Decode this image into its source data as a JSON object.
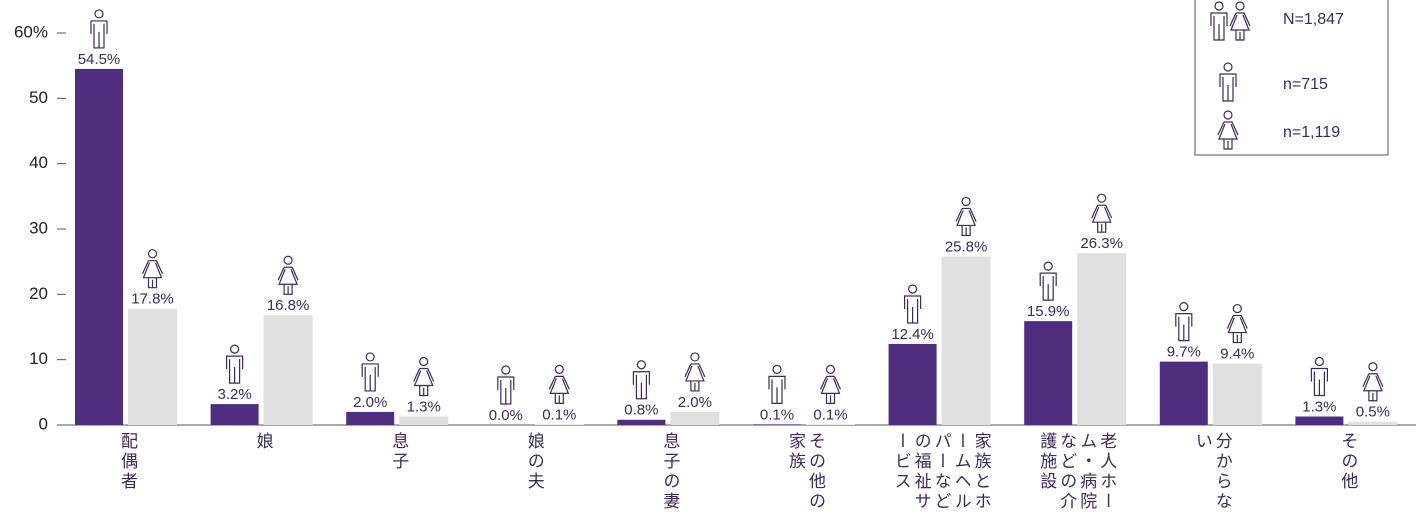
{
  "chart_data": {
    "type": "bar",
    "categories": [
      "配偶者",
      "娘",
      "息子",
      "娘の夫",
      "息子の妻",
      "その他の家族",
      "家族とホームヘルパーなどの福祉サービス",
      "老人ホーム・病院などの介護施設",
      "分からない",
      "その他"
    ],
    "series": [
      {
        "name": "n=715",
        "color": "#4f2d7f",
        "values": [
          54.5,
          3.2,
          2.0,
          0.0,
          0.8,
          0.1,
          12.4,
          15.9,
          9.7,
          1.3
        ],
        "value_labels": [
          "54.5%",
          "3.2%",
          "2.0%",
          "0.0%",
          "0.8%",
          "0.1%",
          "12.4%",
          "15.9%",
          "9.7%",
          "1.3%"
        ]
      },
      {
        "name": "n=1,119",
        "color": "#e0e0e0",
        "values": [
          17.8,
          16.8,
          1.3,
          0.1,
          2.0,
          0.1,
          25.8,
          26.3,
          9.4,
          0.5
        ],
        "value_labels": [
          "17.8%",
          "16.8%",
          "1.3%",
          "0.1%",
          "2.0%",
          "0.1%",
          "25.8%",
          "26.3%",
          "9.4%",
          "0.5%"
        ]
      }
    ],
    "legend_total": "N=1,847",
    "ylim": [
      0,
      60
    ],
    "yticks": [
      0,
      10,
      20,
      30,
      40,
      50,
      {
        "value": 60,
        "label": "60%"
      }
    ]
  }
}
